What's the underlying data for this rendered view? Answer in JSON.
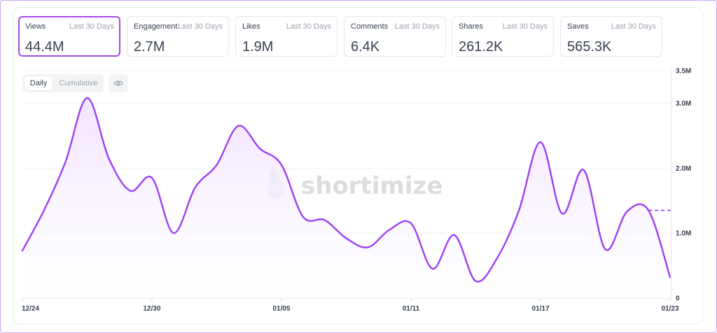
{
  "metrics": [
    {
      "label": "Views",
      "range": "Last 30 Days",
      "value": "44.4M",
      "active": true
    },
    {
      "label": "Engagement",
      "range": "Last 30 Days",
      "value": "2.7M",
      "active": false
    },
    {
      "label": "Likes",
      "range": "Last 30 Days",
      "value": "1.9M",
      "active": false
    },
    {
      "label": "Comments",
      "range": "Last 30 Days",
      "value": "6.4K",
      "active": false
    },
    {
      "label": "Shares",
      "range": "Last 30 Days",
      "value": "261.2K",
      "active": false
    },
    {
      "label": "Saves",
      "range": "Last 30 Days",
      "value": "565.3K",
      "active": false
    }
  ],
  "view_toggle": {
    "daily_label": "Daily",
    "cumulative_label": "Cumulative",
    "selected": "Daily"
  },
  "visibility_button": {
    "icon": "eye-icon"
  },
  "watermark": {
    "text": "shortimize",
    "icon": "shortimize-logo-icon"
  },
  "colors": {
    "accent": "#a24be8",
    "line": "#9d3ff0",
    "fill_top": "#f3e6ff",
    "grid": "#eceef2"
  },
  "chart_data": {
    "type": "area",
    "x": [
      "12/24",
      "12/25",
      "12/26",
      "12/27",
      "12/28",
      "12/29",
      "12/30",
      "12/31",
      "01/01",
      "01/02",
      "01/03",
      "01/04",
      "01/05",
      "01/06",
      "01/07",
      "01/08",
      "01/09",
      "01/10",
      "01/11",
      "01/12",
      "01/13",
      "01/14",
      "01/15",
      "01/16",
      "01/17",
      "01/18",
      "01/19",
      "01/20",
      "01/21",
      "01/22",
      "01/23"
    ],
    "series": [
      {
        "values": [
          0.73,
          1.35,
          2.1,
          3.08,
          2.15,
          1.65,
          1.85,
          1.0,
          1.7,
          2.05,
          2.65,
          2.3,
          2.05,
          1.25,
          1.2,
          0.92,
          0.78,
          1.05,
          1.15,
          0.45,
          0.97,
          0.26,
          0.62,
          1.35,
          2.4,
          1.3,
          1.97,
          0.75,
          1.33,
          1.35,
          0.32
        ]
      }
    ],
    "projection": {
      "from": "01/22",
      "value": 1.35
    },
    "x_ticks": [
      "12/24",
      "12/30",
      "01/05",
      "01/11",
      "01/17",
      "01/23"
    ],
    "y_ticks": [
      0,
      1.0,
      2.0,
      3.0,
      3.5
    ],
    "y_tick_labels": [
      "0",
      "1.0M",
      "2.0M",
      "3.0M",
      "3.5M"
    ],
    "ylim": [
      0,
      3.5
    ],
    "y_axis_side": "right",
    "grid": true,
    "legend": "none"
  }
}
